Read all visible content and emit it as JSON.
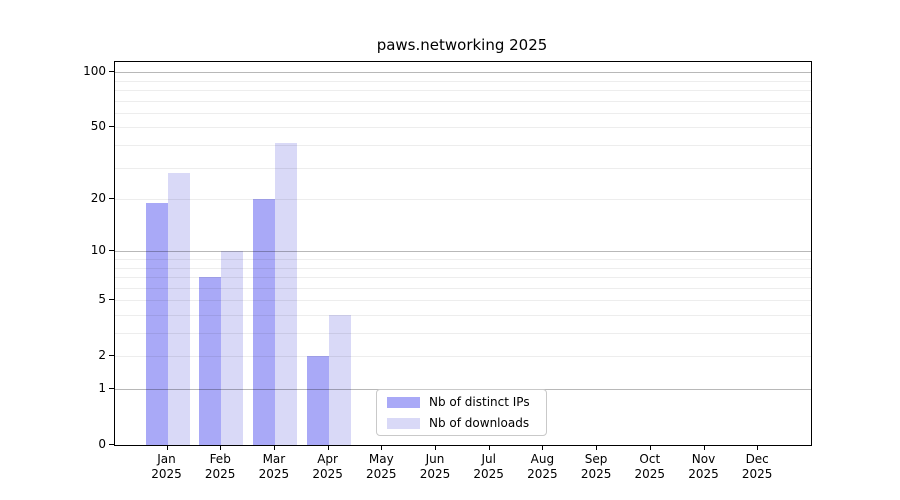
{
  "title": "paws.networking 2025",
  "chart_data": {
    "type": "bar",
    "title": "paws.networking 2025",
    "yscale": "log1p",
    "grid": "horizontal",
    "categories": [
      "Jan 2025",
      "Feb 2025",
      "Mar 2025",
      "Apr 2025",
      "May 2025",
      "Jun 2025",
      "Jul 2025",
      "Aug 2025",
      "Sep 2025",
      "Oct 2025",
      "Nov 2025",
      "Dec 2025"
    ],
    "month_labels": [
      "Jan",
      "Feb",
      "Mar",
      "Apr",
      "May",
      "Jun",
      "Jul",
      "Aug",
      "Sep",
      "Oct",
      "Nov",
      "Dec"
    ],
    "year_label": "2025",
    "series": [
      {
        "name": "Nb of distinct IPs",
        "color": "#a9a9f7",
        "values": [
          19,
          7,
          20,
          2,
          0,
          0,
          0,
          0,
          0,
          0,
          0,
          0
        ]
      },
      {
        "name": "Nb of downloads",
        "color": "#d9d9f7",
        "values": [
          28,
          10,
          41,
          4,
          0,
          0,
          0,
          0,
          0,
          0,
          0,
          0
        ]
      }
    ],
    "ytick_labels": [
      "100",
      "50",
      "20",
      "10",
      "5",
      "2",
      "1",
      "0"
    ],
    "ytick_values": [
      100,
      50,
      20,
      10,
      5,
      2,
      1,
      0
    ],
    "major_gridline_values": [
      1,
      10,
      100
    ],
    "minor_gridline_values": [
      2,
      3,
      4,
      5,
      6,
      7,
      8,
      9,
      20,
      30,
      40,
      50,
      60,
      70,
      80,
      90
    ],
    "ylim": [
      0,
      116
    ],
    "legend_position": "lower center"
  },
  "colors": {
    "major_grid": "rgba(0,0,0,0.28)",
    "minor_grid": "rgba(0,0,0,0.07)",
    "axis": "#000000",
    "legend_border": "#c9c9c9",
    "background": "#ffffff"
  }
}
